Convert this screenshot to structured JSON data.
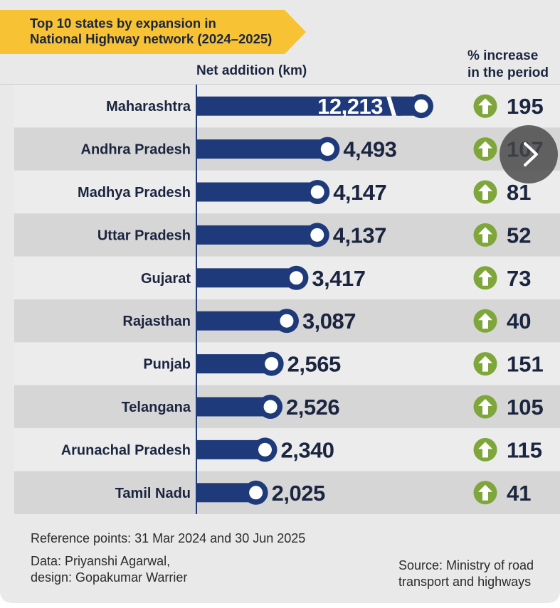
{
  "header": {
    "title": "Top 10 states by expansion in\nNational Highway network (2024–2025)",
    "net_label": "Net addition (km)",
    "pct_label": "% increase\nin the period"
  },
  "colors": {
    "banner": "#f7c233",
    "bar": "#1f3a7a",
    "row_dark": "#d6d6d6",
    "row_light": "#ececec",
    "arrow_circle": "#7fa63b",
    "text": "#1b2540"
  },
  "icons": {
    "increase": "up-arrow-icon",
    "next": "chevron-right-icon"
  },
  "chart_data": {
    "type": "bar",
    "title": "Top 10 states by expansion in National Highway network (2024–2025)",
    "xlabel": "Net addition (km)",
    "categories": [
      "Maharashtra",
      "Andhra Pradesh",
      "Madhya Pradesh",
      "Uttar Pradesh",
      "Gujarat",
      "Rajasthan",
      "Punjab",
      "Telangana",
      "Arunachal Pradesh",
      "Tamil Nadu"
    ],
    "series": [
      {
        "name": "Net addition (km)",
        "values": [
          12213,
          4493,
          4147,
          4137,
          3417,
          3087,
          2565,
          2526,
          2340,
          2025
        ]
      },
      {
        "name": "% increase in the period",
        "values": [
          195,
          107,
          81,
          52,
          73,
          40,
          151,
          105,
          115,
          41
        ]
      }
    ],
    "value_labels": [
      "12,213",
      "4,493",
      "4,147",
      "4,137",
      "3,417",
      "3,087",
      "2,565",
      "2,526",
      "2,340",
      "2,025"
    ],
    "broken_axis_first_bar": true
  },
  "footer": {
    "reference": "Reference points: 31 Mar 2024 and 30 Jun 2025",
    "credits": "Data: Priyanshi Agarwal,\ndesign: Gopakumar Warrier",
    "source": "Source: Ministry of road\ntransport and highways"
  }
}
